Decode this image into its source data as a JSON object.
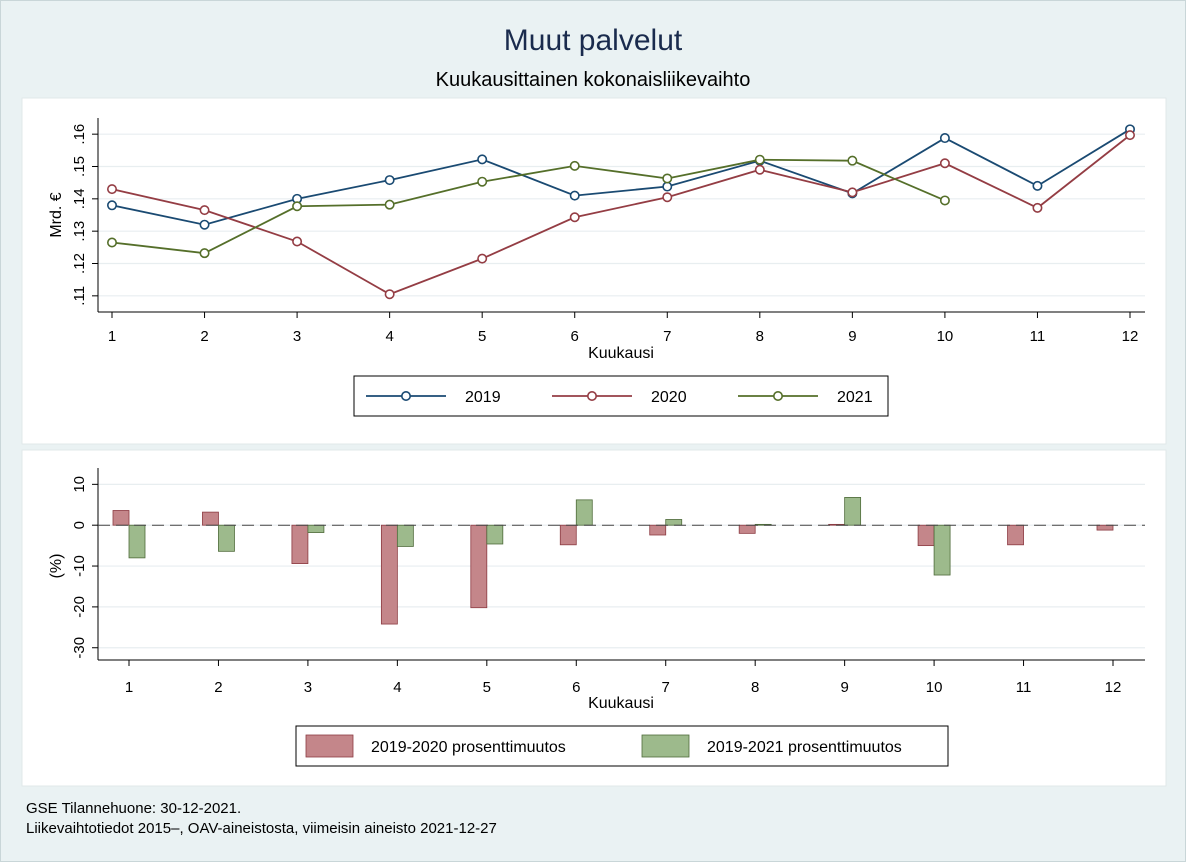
{
  "title": "Muut palvelut",
  "subtitle": "Kuukausittainen kokonaisliikevaihto",
  "footnote": [
    "GSE Tilannehuone: 30-12-2021.",
    "Liikevaihtotiedot 2015–, OAV-aineistosta, viimeisin aineisto 2021-12-27"
  ],
  "colors": {
    "s2019": "#1a4a72",
    "s2020": "#943d44",
    "s2021": "#556f2a",
    "bar2020": "#c4868a",
    "bar2020_edge": "#8c3b42",
    "bar2021": "#9dba8c",
    "bar2021_edge": "#4f6b3a",
    "grid": "#e8eef0",
    "plot_bg": "#ffffff"
  },
  "chart_data": [
    {
      "type": "line",
      "xlabel": "Kuukausi",
      "ylabel": "Mrd. €",
      "x": [
        1,
        2,
        3,
        4,
        5,
        6,
        7,
        8,
        9,
        10,
        11,
        12
      ],
      "xlim": [
        0.88,
        12.15
      ],
      "ylim": [
        0.105,
        0.165
      ],
      "yticks": [
        0.11,
        0.12,
        0.13,
        0.14,
        0.15,
        0.16
      ],
      "ytick_labels": [
        ".11",
        ".12",
        ".13",
        ".14",
        ".15",
        ".16"
      ],
      "grid": true,
      "legend_position": "bottom",
      "series": [
        {
          "name": "2019",
          "color_key": "s2019",
          "values": [
            0.138,
            0.132,
            0.14,
            0.1458,
            0.1522,
            0.141,
            0.1438,
            0.1518,
            0.1417,
            0.1588,
            0.144,
            0.1615
          ]
        },
        {
          "name": "2020",
          "color_key": "s2020",
          "values": [
            0.143,
            0.1365,
            0.1268,
            0.1105,
            0.1215,
            0.1343,
            0.1405,
            0.149,
            0.142,
            0.151,
            0.1372,
            0.1597
          ]
        },
        {
          "name": "2021",
          "color_key": "s2021",
          "values": [
            0.1265,
            0.1232,
            0.1377,
            0.1382,
            0.1453,
            0.1502,
            0.1463,
            0.1521,
            0.1518,
            0.1395,
            null,
            null
          ]
        }
      ]
    },
    {
      "type": "bar",
      "xlabel": "Kuukausi",
      "ylabel": "(%)",
      "categories": [
        1,
        2,
        3,
        4,
        5,
        6,
        7,
        8,
        9,
        10,
        11,
        12
      ],
      "ylim": [
        -33,
        14
      ],
      "yticks": [
        -30,
        -20,
        -10,
        0,
        10
      ],
      "grid": true,
      "legend_position": "bottom",
      "series": [
        {
          "name": "2019-2020 prosenttimuutos",
          "color_key": "bar2020",
          "values": [
            3.6,
            3.2,
            -9.4,
            -24.2,
            -20.2,
            -4.8,
            -2.4,
            -2.0,
            0.2,
            -5.0,
            -4.8,
            -1.2
          ]
        },
        {
          "name": "2019-2021 prosenttimuutos",
          "color_key": "bar2021",
          "values": [
            -8.0,
            -6.4,
            -1.8,
            -5.2,
            -4.6,
            6.2,
            1.4,
            0.2,
            6.8,
            -12.2,
            null,
            null
          ]
        }
      ]
    }
  ]
}
